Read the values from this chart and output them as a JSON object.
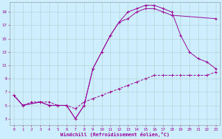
{
  "bg_color": "#cceeff",
  "line_color": "#990099",
  "xlabel": "Windchill (Refroidissement éolien,°C)",
  "xlim": [
    -0.5,
    23.5
  ],
  "ylim": [
    2.0,
    20.5
  ],
  "xticks": [
    0,
    1,
    2,
    3,
    4,
    5,
    6,
    7,
    8,
    9,
    10,
    11,
    12,
    13,
    14,
    15,
    16,
    17,
    18,
    19,
    20,
    21,
    22,
    23
  ],
  "yticks": [
    3,
    5,
    7,
    9,
    11,
    13,
    15,
    17,
    19
  ],
  "curve1_x": [
    0,
    1,
    3,
    4,
    5,
    6,
    7,
    8,
    9,
    10,
    11,
    12,
    13,
    14,
    15,
    16,
    17,
    18,
    19,
    20,
    21,
    22,
    23
  ],
  "curve1_y": [
    6.5,
    5.0,
    5.5,
    5.0,
    5.0,
    5.0,
    3.0,
    5.0,
    10.5,
    13.0,
    15.5,
    17.5,
    19.0,
    19.5,
    20.0,
    20.0,
    19.5,
    19.0,
    15.5,
    13.0,
    12.0,
    11.5,
    10.5
  ],
  "curve2_x": [
    0,
    1,
    3,
    4,
    5,
    6,
    7,
    8,
    9,
    10,
    11,
    12,
    13,
    14,
    15,
    16,
    17,
    18,
    23
  ],
  "curve2_y": [
    6.5,
    5.0,
    5.5,
    5.0,
    5.0,
    5.0,
    3.0,
    5.0,
    10.5,
    13.0,
    15.5,
    17.5,
    18.0,
    19.0,
    19.5,
    19.5,
    19.0,
    18.5,
    18.0
  ],
  "curve3_x": [
    0,
    1,
    2,
    3,
    4,
    5,
    6,
    7,
    8,
    9,
    10,
    11,
    12,
    13,
    14,
    15,
    16,
    17,
    18,
    19,
    20,
    21,
    22,
    23
  ],
  "curve3_y": [
    6.5,
    5.0,
    5.5,
    5.5,
    5.5,
    5.0,
    5.0,
    4.5,
    5.5,
    6.0,
    6.5,
    7.0,
    7.5,
    8.0,
    8.5,
    9.0,
    9.5,
    9.5,
    9.5,
    9.5,
    9.5,
    9.5,
    9.5,
    10.0
  ]
}
